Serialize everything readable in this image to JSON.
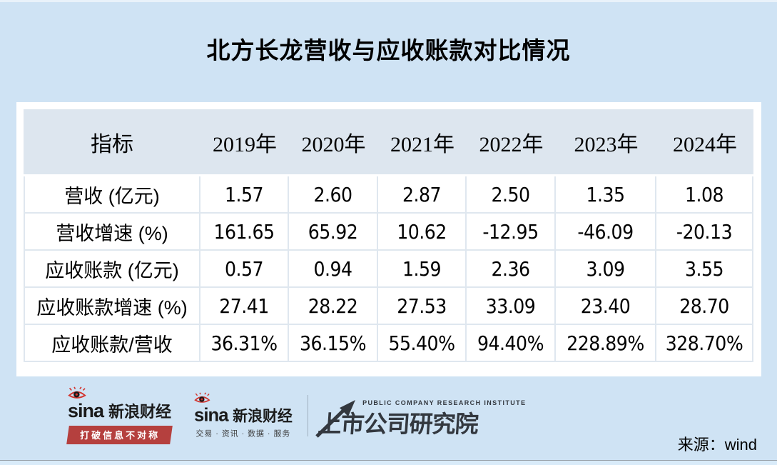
{
  "title": "北方长龙营收与应收账款对比情况",
  "table": {
    "columns": [
      "指标",
      "2019年",
      "2020年",
      "2021年",
      "2022年",
      "2023年",
      "2024年"
    ],
    "rows": [
      {
        "label": "营收 (亿元)",
        "values": [
          "1.57",
          "2.60",
          "2.87",
          "2.50",
          "1.35",
          "1.08"
        ]
      },
      {
        "label": "营收增速 (%)",
        "values": [
          "161.65",
          "65.92",
          "10.62",
          "-12.95",
          "-46.09",
          "-20.13"
        ]
      },
      {
        "label": "应收账款 (亿元)",
        "values": [
          "0.57",
          "0.94",
          "1.59",
          "2.36",
          "3.09",
          "3.55"
        ]
      },
      {
        "label": "应收账款增速 (%)",
        "values": [
          "27.41",
          "28.22",
          "27.53",
          "33.09",
          "23.40",
          "28.70"
        ]
      },
      {
        "label": "应收账款/营收",
        "values": [
          "36.31%",
          "36.15%",
          "55.40%",
          "94.40%",
          "228.89%",
          "328.70%"
        ]
      }
    ]
  },
  "chart_data": {
    "type": "table",
    "title": "北方长龙营收与应收账款对比情况",
    "categories": [
      "2019年",
      "2020年",
      "2021年",
      "2022年",
      "2023年",
      "2024年"
    ],
    "series": [
      {
        "name": "营收 (亿元)",
        "values": [
          1.57,
          2.6,
          2.87,
          2.5,
          1.35,
          1.08
        ]
      },
      {
        "name": "营收增速 (%)",
        "values": [
          161.65,
          65.92,
          10.62,
          -12.95,
          -46.09,
          -20.13
        ]
      },
      {
        "name": "应收账款 (亿元)",
        "values": [
          0.57,
          0.94,
          1.59,
          2.36,
          3.09,
          3.55
        ]
      },
      {
        "name": "应收账款增速 (%)",
        "values": [
          27.41,
          28.22,
          27.53,
          33.09,
          23.4,
          28.7
        ]
      },
      {
        "name": "应收账款/营收 (%)",
        "values": [
          36.31,
          36.15,
          55.4,
          94.4,
          228.89,
          328.7
        ]
      }
    ],
    "source": "wind"
  },
  "footer": {
    "sina_word": "sina",
    "sina_brand": "新浪财经",
    "slogan": "打破信息不对称",
    "services": "交易 · 资讯 · 数据 · 服务",
    "institute_en": "PUBLIC COMPANY RESEARCH INSTITUTE",
    "institute_cn": "上市公司研究院"
  },
  "source": "来源：wind",
  "colors": {
    "page_bg": "#cfe3f4",
    "header_bg": "#dde6ef",
    "border": "#dfe7ef",
    "card_bg": "#ffffff",
    "sina_red": "#d2342e",
    "banner_red": "#b5403e",
    "institute": "#33383f",
    "text": "#000000"
  }
}
